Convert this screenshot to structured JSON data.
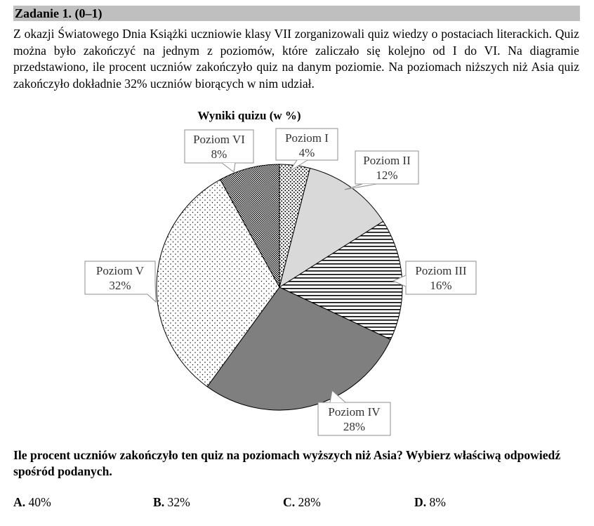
{
  "task": {
    "header": "Zadanie 1. (0–1)",
    "intro": "Z okazji Światowego Dnia Książki uczniowie klasy VII zorganizowali quiz wiedzy o postaciach literackich. Quiz można było zakończyć na jednym z poziomów, które zaliczało się kolejno od I do VI. Na diagramie przedstawiono, ile procent uczniów zakończyło quiz na danym poziomie. Na poziomach niższych niż Asia quiz zakończyło dokładnie 32% uczniów biorących w nim udział.",
    "question": "Ile procent uczniów zakończyło ten quiz na poziomach wyższych niż Asia? Wybierz właściwą odpowiedź spośród podanych.",
    "answers": [
      {
        "letter": "A.",
        "text": " 40%"
      },
      {
        "letter": "B.",
        "text": " 32%"
      },
      {
        "letter": "C.",
        "text": " 28%"
      },
      {
        "letter": "D.",
        "text": " 8%"
      }
    ]
  },
  "chart_data": {
    "type": "pie",
    "title": "Wyniki quizu (w %)",
    "categories": [
      "Poziom I",
      "Poziom II",
      "Poziom III",
      "Poziom IV",
      "Poziom V",
      "Poziom VI"
    ],
    "values": [
      4,
      12,
      16,
      28,
      32,
      8
    ],
    "value_labels": [
      "4%",
      "12%",
      "16%",
      "28%",
      "32%",
      "8%"
    ],
    "fills": [
      "dense-dots",
      "light-gray",
      "horizontal-stripes",
      "dark-gray",
      "sparse-dots",
      "fine-checker"
    ],
    "colors": {
      "light_gray": "#d9d9d9",
      "dark_gray": "#7f7f7f",
      "pattern_ink": "#000000"
    }
  }
}
